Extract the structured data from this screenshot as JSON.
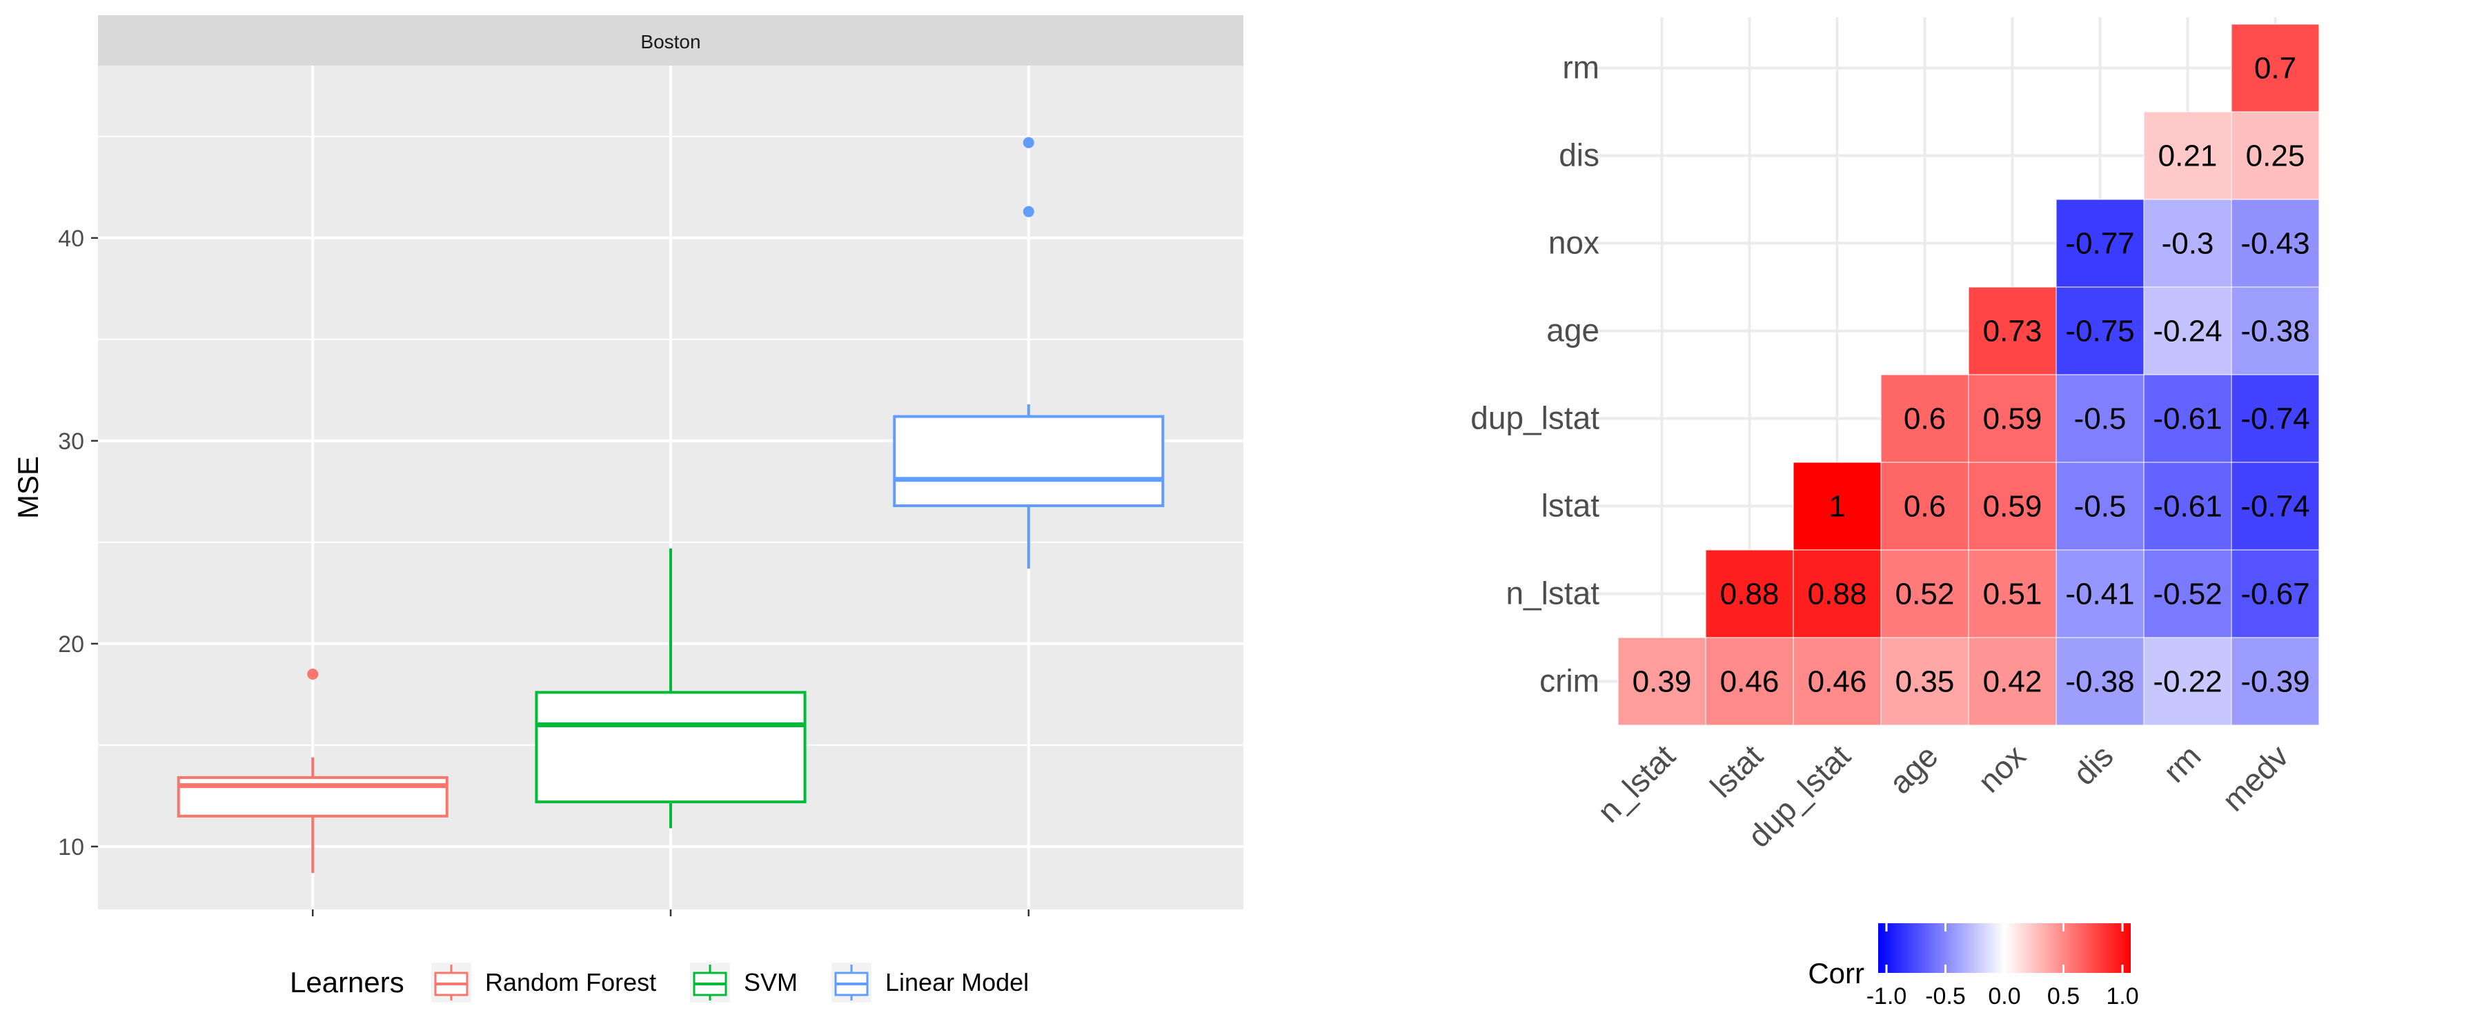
{
  "chart_data": [
    {
      "type": "box",
      "facet": "Boston",
      "ylabel": "MSE",
      "xlabel": "",
      "ylim": [
        6.9,
        48.5
      ],
      "yticks": [
        10,
        20,
        30,
        40
      ],
      "grid": true,
      "legend": {
        "title": "Learners",
        "position": "bottom",
        "items": [
          "Random Forest",
          "SVM",
          "Linear Model"
        ]
      },
      "series": [
        {
          "name": "Random Forest",
          "color": "#F8766D",
          "min": 8.7,
          "q1": 11.5,
          "median": 13.0,
          "q3": 13.4,
          "max": 14.4,
          "outliers": [
            18.5
          ]
        },
        {
          "name": "SVM",
          "color": "#00BA38",
          "min": 10.9,
          "q1": 12.2,
          "median": 16.0,
          "q3": 17.6,
          "max": 24.7,
          "outliers": []
        },
        {
          "name": "Linear Model",
          "color": "#619CFF",
          "min": 23.7,
          "q1": 26.8,
          "median": 28.1,
          "q3": 31.2,
          "max": 31.8,
          "outliers": [
            41.3,
            44.7
          ]
        }
      ]
    },
    {
      "type": "heatmap",
      "x_labels": [
        "n_lstat",
        "lstat",
        "dup_lstat",
        "age",
        "nox",
        "dis",
        "rm",
        "medv"
      ],
      "y_labels": [
        "crim",
        "n_lstat",
        "lstat",
        "dup_lstat",
        "age",
        "nox",
        "dis",
        "rm"
      ],
      "cells": [
        {
          "x": "n_lstat",
          "y": "crim",
          "value": 0.39,
          "label": "0.39"
        },
        {
          "x": "lstat",
          "y": "crim",
          "value": 0.46,
          "label": "0.46"
        },
        {
          "x": "dup_lstat",
          "y": "crim",
          "value": 0.46,
          "label": "0.46"
        },
        {
          "x": "age",
          "y": "crim",
          "value": 0.35,
          "label": "0.35"
        },
        {
          "x": "nox",
          "y": "crim",
          "value": 0.42,
          "label": "0.42"
        },
        {
          "x": "dis",
          "y": "crim",
          "value": -0.38,
          "label": "-0.38"
        },
        {
          "x": "rm",
          "y": "crim",
          "value": -0.22,
          "label": "-0.22"
        },
        {
          "x": "medv",
          "y": "crim",
          "value": -0.39,
          "label": "-0.39"
        },
        {
          "x": "lstat",
          "y": "n_lstat",
          "value": 0.88,
          "label": "0.88"
        },
        {
          "x": "dup_lstat",
          "y": "n_lstat",
          "value": 0.88,
          "label": "0.88"
        },
        {
          "x": "age",
          "y": "n_lstat",
          "value": 0.52,
          "label": "0.52"
        },
        {
          "x": "nox",
          "y": "n_lstat",
          "value": 0.51,
          "label": "0.51"
        },
        {
          "x": "dis",
          "y": "n_lstat",
          "value": -0.41,
          "label": "-0.41"
        },
        {
          "x": "rm",
          "y": "n_lstat",
          "value": -0.52,
          "label": "-0.52"
        },
        {
          "x": "medv",
          "y": "n_lstat",
          "value": -0.67,
          "label": "-0.67"
        },
        {
          "x": "dup_lstat",
          "y": "lstat",
          "value": 1.0,
          "label": "1"
        },
        {
          "x": "age",
          "y": "lstat",
          "value": 0.6,
          "label": "0.6"
        },
        {
          "x": "nox",
          "y": "lstat",
          "value": 0.59,
          "label": "0.59"
        },
        {
          "x": "dis",
          "y": "lstat",
          "value": -0.5,
          "label": "-0.5"
        },
        {
          "x": "rm",
          "y": "lstat",
          "value": -0.61,
          "label": "-0.61"
        },
        {
          "x": "medv",
          "y": "lstat",
          "value": -0.74,
          "label": "-0.74"
        },
        {
          "x": "age",
          "y": "dup_lstat",
          "value": 0.6,
          "label": "0.6"
        },
        {
          "x": "nox",
          "y": "dup_lstat",
          "value": 0.59,
          "label": "0.59"
        },
        {
          "x": "dis",
          "y": "dup_lstat",
          "value": -0.5,
          "label": "-0.5"
        },
        {
          "x": "rm",
          "y": "dup_lstat",
          "value": -0.61,
          "label": "-0.61"
        },
        {
          "x": "medv",
          "y": "dup_lstat",
          "value": -0.74,
          "label": "-0.74"
        },
        {
          "x": "nox",
          "y": "age",
          "value": 0.73,
          "label": "0.73"
        },
        {
          "x": "dis",
          "y": "age",
          "value": -0.75,
          "label": "-0.75"
        },
        {
          "x": "rm",
          "y": "age",
          "value": -0.24,
          "label": "-0.24"
        },
        {
          "x": "medv",
          "y": "age",
          "value": -0.38,
          "label": "-0.38"
        },
        {
          "x": "dis",
          "y": "nox",
          "value": -0.77,
          "label": "-0.77"
        },
        {
          "x": "rm",
          "y": "nox",
          "value": -0.3,
          "label": "-0.3"
        },
        {
          "x": "medv",
          "y": "nox",
          "value": -0.43,
          "label": "-0.43"
        },
        {
          "x": "rm",
          "y": "dis",
          "value": 0.21,
          "label": "0.21"
        },
        {
          "x": "medv",
          "y": "dis",
          "value": 0.25,
          "label": "0.25"
        },
        {
          "x": "medv",
          "y": "rm",
          "value": 0.7,
          "label": "0.7"
        }
      ],
      "colorbar": {
        "title": "Corr",
        "range": [
          -1,
          1
        ],
        "colors": {
          "low": "#0000FF",
          "mid": "#FFFFFF",
          "high": "#FF0000"
        },
        "ticks": [
          "-1.0",
          "-0.5",
          "0.0",
          "0.5",
          "1.0"
        ],
        "position": "bottom"
      },
      "grid": true
    }
  ]
}
